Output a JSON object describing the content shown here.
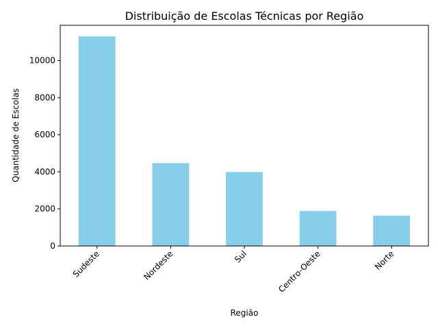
{
  "chart_data": {
    "type": "bar",
    "title": "Distribuição de Escolas Técnicas por Região",
    "xlabel": "Região",
    "ylabel": "Quantidade de Escolas",
    "categories": [
      "Sudeste",
      "Nordeste",
      "Sul",
      "Centro-Oeste",
      "Norte"
    ],
    "values": [
      11300,
      4470,
      3990,
      1890,
      1640
    ],
    "ylim": [
      0,
      11900
    ],
    "yticks": [
      0,
      2000,
      4000,
      6000,
      8000,
      10000
    ],
    "bar_color": "#87ceeb",
    "grid": false,
    "legend": "none"
  }
}
